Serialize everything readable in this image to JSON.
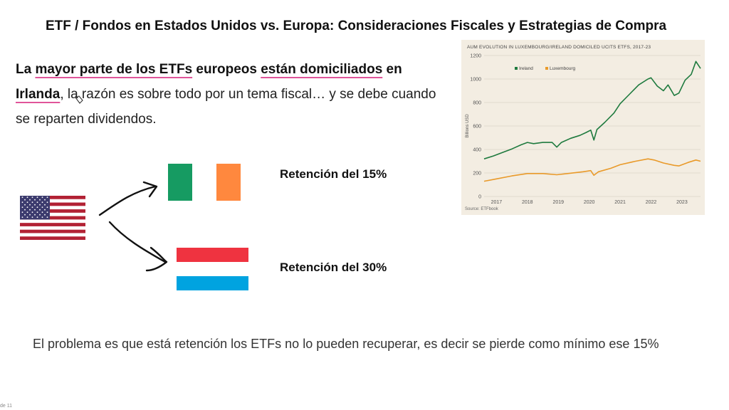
{
  "slide": {
    "title": "ETF / Fondos en Estados Unidos vs. Europa: Consideraciones Fiscales y Estrategias de Compra",
    "intro": {
      "p1": "La ",
      "p2": "mayor parte de los ETFs",
      "p3": " europeos ",
      "p4": "están domiciliados",
      "p5": " en ",
      "p6": "Irlanda",
      "p7": ", la razón es sobre todo por un tema fiscal… y se debe cuando se reparten dividendos."
    },
    "retention_ireland": "Retención del 15%",
    "retention_luxembourg": "Retención del 30%",
    "bottom_text": "El problema es que está retención los ETFs no lo pueden recuperar, es decir se pierde como mínimo ese 15%",
    "footer_left": "de 11"
  },
  "flags": {
    "usa": {
      "stripe_red": "#b22234",
      "stripe_white": "#ffffff",
      "canton": "#3c3b6e"
    },
    "ireland": [
      "#169b62",
      "#ffffff",
      "#ff883e"
    ],
    "luxembourg": [
      "#ef3340",
      "#ffffff",
      "#00a3e0"
    ]
  },
  "chart_data": {
    "type": "line",
    "title": "AUM EVOLUTION IN LUXEMBOURG/IRELAND DOMICILED UCITS ETFS, 2017-23",
    "ylabel": "Billions USD",
    "source": "Source: ETFbook",
    "ylim": [
      0,
      1200
    ],
    "yticks": [
      0,
      200,
      400,
      600,
      800,
      1000,
      1200
    ],
    "xlim": [
      2016.6,
      2023.6
    ],
    "xticks": [
      2017,
      2018,
      2019,
      2020,
      2021,
      2022,
      2023
    ],
    "legend_position": "top-left",
    "series": [
      {
        "name": "Ireland",
        "color": "#1e7a3e",
        "points": [
          [
            2016.6,
            320
          ],
          [
            2016.9,
            345
          ],
          [
            2017.2,
            375
          ],
          [
            2017.5,
            405
          ],
          [
            2017.8,
            440
          ],
          [
            2018.0,
            460
          ],
          [
            2018.2,
            450
          ],
          [
            2018.5,
            460
          ],
          [
            2018.8,
            460
          ],
          [
            2018.95,
            420
          ],
          [
            2019.1,
            460
          ],
          [
            2019.4,
            495
          ],
          [
            2019.7,
            520
          ],
          [
            2019.9,
            545
          ],
          [
            2020.05,
            565
          ],
          [
            2020.15,
            480
          ],
          [
            2020.25,
            570
          ],
          [
            2020.5,
            630
          ],
          [
            2020.8,
            710
          ],
          [
            2021.0,
            790
          ],
          [
            2021.3,
            870
          ],
          [
            2021.6,
            950
          ],
          [
            2021.9,
            1000
          ],
          [
            2022.0,
            1010
          ],
          [
            2022.2,
            940
          ],
          [
            2022.4,
            900
          ],
          [
            2022.55,
            950
          ],
          [
            2022.75,
            860
          ],
          [
            2022.9,
            880
          ],
          [
            2023.1,
            990
          ],
          [
            2023.3,
            1040
          ],
          [
            2023.45,
            1150
          ],
          [
            2023.6,
            1090
          ]
        ]
      },
      {
        "name": "Luxembourg",
        "color": "#e99a2a",
        "points": [
          [
            2016.6,
            130
          ],
          [
            2017.0,
            150
          ],
          [
            2017.5,
            175
          ],
          [
            2018.0,
            195
          ],
          [
            2018.5,
            195
          ],
          [
            2018.95,
            185
          ],
          [
            2019.3,
            195
          ],
          [
            2019.8,
            210
          ],
          [
            2020.05,
            220
          ],
          [
            2020.15,
            180
          ],
          [
            2020.3,
            210
          ],
          [
            2020.7,
            240
          ],
          [
            2021.0,
            270
          ],
          [
            2021.5,
            300
          ],
          [
            2021.9,
            320
          ],
          [
            2022.1,
            310
          ],
          [
            2022.4,
            285
          ],
          [
            2022.75,
            265
          ],
          [
            2022.9,
            260
          ],
          [
            2023.2,
            290
          ],
          [
            2023.45,
            310
          ],
          [
            2023.6,
            300
          ]
        ]
      }
    ]
  }
}
